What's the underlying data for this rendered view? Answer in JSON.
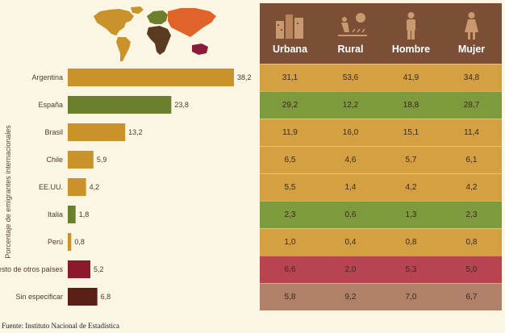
{
  "chart_data": {
    "type": "bar",
    "orientation": "horizontal",
    "categories": [
      "Argentina",
      "España",
      "Brasil",
      "Chile",
      "EE.UU.",
      "Italia",
      "Perú",
      "Resto de otros países",
      "Sin especificar"
    ],
    "values": [
      38.2,
      23.8,
      13.2,
      5.9,
      4.2,
      1.8,
      0.8,
      5.2,
      6.8
    ],
    "value_labels": [
      "38,2",
      "23,8",
      "13,2",
      "5,9",
      "4,2",
      "1,8",
      "0,8",
      "5,2",
      "6,8"
    ],
    "ylabel": "Porcentaje de emigrantes internacionales",
    "xlim": [
      0,
      40
    ],
    "colors": [
      "#c9922a",
      "#6b7f2d",
      "#c9922a",
      "#c9922a",
      "#c9922a",
      "#6b7f2d",
      "#c9922a",
      "#8c1a2a",
      "#5a1f17"
    ]
  },
  "table": {
    "headers": [
      {
        "label": "Urbana",
        "icon": "city-icon"
      },
      {
        "label": "Rural",
        "icon": "farmer-icon"
      },
      {
        "label": "Hombre",
        "icon": "man-icon"
      },
      {
        "label": "Mujer",
        "icon": "woman-icon"
      }
    ],
    "header_color": "#7a4f36",
    "rows": [
      {
        "color": "#d4a042",
        "values": [
          "31,1",
          "53,6",
          "41,9",
          "34,8"
        ]
      },
      {
        "color": "#7d9a3c",
        "values": [
          "29,2",
          "12,2",
          "18,8",
          "28,7"
        ]
      },
      {
        "color": "#d4a042",
        "values": [
          "11,9",
          "16,0",
          "15,1",
          "11,4"
        ]
      },
      {
        "color": "#d4a042",
        "values": [
          "6,5",
          "4,6",
          "5,7",
          "6,1"
        ]
      },
      {
        "color": "#d4a042",
        "values": [
          "5,5",
          "1,4",
          "4,2",
          "4,2"
        ]
      },
      {
        "color": "#7d9a3c",
        "values": [
          "2,3",
          "0,6",
          "1,3",
          "2,3"
        ]
      },
      {
        "color": "#d4a042",
        "values": [
          "1,0",
          "0,4",
          "0,8",
          "0,8"
        ]
      },
      {
        "color": "#b84452",
        "values": [
          "6,6",
          "2,0",
          "5,3",
          "5,0"
        ]
      },
      {
        "color": "#b08068",
        "values": [
          "5,8",
          "9,2",
          "7,0",
          "6,7"
        ]
      }
    ]
  },
  "source": "Fuente: Instituto Nacional de Estadística"
}
